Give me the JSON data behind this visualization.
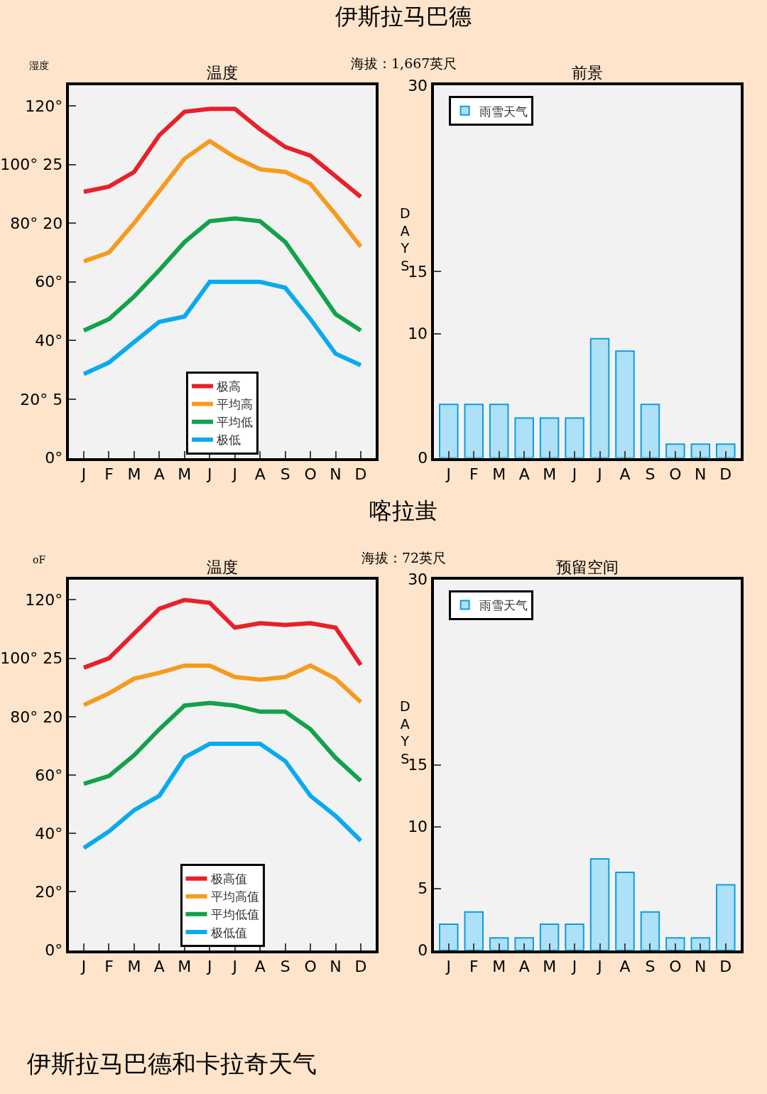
{
  "chart_data": [
    {
      "type": "line",
      "title": "温度",
      "ylabel": "湿度",
      "annotations": [
        "伊斯拉马巴德",
        "海拔：1,667英尺"
      ],
      "categories": [
        "J",
        "F",
        "M",
        "A",
        "M",
        "J",
        "J",
        "A",
        "S",
        "O",
        "N",
        "D"
      ],
      "ylim": [
        0,
        127
      ],
      "yticks": [
        {
          "value": 0,
          "label": "0°"
        },
        {
          "value": 20,
          "label": "20° 5"
        },
        {
          "value": 40,
          "label": "40°"
        },
        {
          "value": 60,
          "label": "60°"
        },
        {
          "value": 80,
          "label": "80° 20"
        },
        {
          "value": 100,
          "label": "100° 25"
        },
        {
          "value": 120,
          "label": "120°"
        }
      ],
      "grid": false,
      "legend": "bottom",
      "marker": "none",
      "line_style": "solid",
      "series": [
        {
          "name": "极高",
          "color": "#e8202a",
          "values": [
            90.7,
            92.5,
            97.5,
            110,
            118,
            119,
            119,
            112,
            106,
            103,
            96,
            89
          ]
        },
        {
          "name": "平均高",
          "color": "#f79a1e",
          "values": [
            67,
            70,
            80,
            91,
            102,
            108,
            102.5,
            98.4,
            97.5,
            93.4,
            83,
            72
          ]
        },
        {
          "name": "平均低",
          "color": "#12a24a",
          "values": [
            43.4,
            47.3,
            55,
            64,
            73.6,
            80.7,
            81.6,
            80.7,
            73.6,
            61.4,
            49,
            43.4
          ]
        },
        {
          "name": "极低",
          "color": "#0aaaee",
          "values": [
            28.6,
            32.5,
            39.5,
            46.4,
            48.2,
            60,
            60,
            60,
            58,
            47.3,
            35.5,
            31.6
          ]
        }
      ]
    },
    {
      "type": "bar",
      "title": "前景",
      "ylabel": "DAYS",
      "categories": [
        "J",
        "F",
        "M",
        "A",
        "M",
        "J",
        "J",
        "A",
        "S",
        "O",
        "N",
        "D"
      ],
      "ylim": [
        0,
        30
      ],
      "yticks": [
        0,
        10,
        15,
        30
      ],
      "grid": false,
      "legend": "top left",
      "series": [
        {
          "name": "雨雪天气",
          "color": "#aee0f8",
          "values": [
            4.3,
            4.3,
            4.3,
            3.2,
            3.2,
            3.2,
            9.6,
            8.6,
            4.3,
            1.1,
            1.1,
            1.1
          ]
        }
      ]
    },
    {
      "type": "line",
      "title": "温度",
      "ylabel": "oF",
      "annotations": [
        "喀拉蚩",
        "海拔：72英尺"
      ],
      "categories": [
        "J",
        "F",
        "M",
        "A",
        "M",
        "J",
        "J",
        "A",
        "S",
        "O",
        "N",
        "D"
      ],
      "ylim": [
        0,
        127
      ],
      "yticks": [
        {
          "value": 0,
          "label": "0°"
        },
        {
          "value": 20,
          "label": "20°"
        },
        {
          "value": 40,
          "label": "40°"
        },
        {
          "value": 60,
          "label": "60°"
        },
        {
          "value": 80,
          "label": "80° 20"
        },
        {
          "value": 100,
          "label": "100° 25"
        },
        {
          "value": 120,
          "label": "120°"
        }
      ],
      "grid": false,
      "legend": "bottom",
      "marker": "none",
      "line_style": "solid",
      "series": [
        {
          "name": "极高值",
          "color": "#e8202a",
          "values": [
            96.8,
            100,
            108.5,
            117,
            120,
            119,
            110.5,
            112,
            111.4,
            112,
            110.5,
            97.7
          ]
        },
        {
          "name": "平均高值",
          "color": "#f79a1e",
          "values": [
            84,
            88,
            93,
            95,
            97.5,
            97.5,
            93.6,
            92.7,
            93.6,
            97.5,
            93,
            85
          ]
        },
        {
          "name": "平均低值",
          "color": "#12a24a",
          "values": [
            57,
            59.7,
            66.8,
            75.7,
            83.8,
            84.7,
            83.8,
            81.7,
            81.7,
            75.7,
            65.9,
            58
          ]
        },
        {
          "name": "极低值",
          "color": "#0aaaee",
          "values": [
            35,
            40.7,
            48,
            52.9,
            66,
            70.7,
            70.7,
            70.7,
            64.8,
            52.9,
            46,
            37.5
          ]
        }
      ]
    },
    {
      "type": "bar",
      "title": "预留空间",
      "ylabel": "DAYS",
      "categories": [
        "J",
        "F",
        "M",
        "A",
        "M",
        "J",
        "J",
        "A",
        "S",
        "O",
        "N",
        "D"
      ],
      "ylim": [
        0,
        30
      ],
      "yticks": [
        0,
        5,
        10,
        15,
        30
      ],
      "grid": false,
      "legend": "top left",
      "series": [
        {
          "name": "雨雪天气",
          "color": "#aee0f8",
          "values": [
            2.1,
            3.1,
            1.0,
            1.0,
            2.1,
            2.1,
            7.4,
            6.3,
            3.1,
            1.0,
            1.0,
            5.3
          ]
        }
      ]
    },
    {
      "type": "other",
      "title": "伊斯拉马巴德和卡拉奇天气"
    }
  ]
}
